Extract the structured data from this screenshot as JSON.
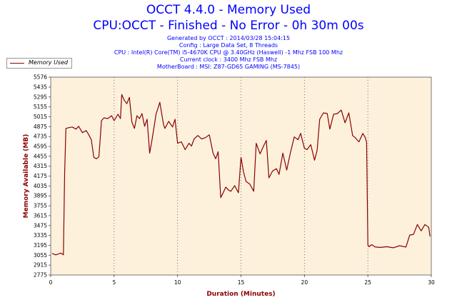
{
  "header": {
    "title": "OCCT 4.4.0 - Memory Used",
    "subtitle": "CPU:OCCT - Finished - No Error - 0h 30m 00s",
    "info_lines": [
      "Generated by OCCT : 2014/03/28 15:04:15",
      "Config : Large Data Set, 8 Threads",
      "CPU : Intel(R) Core(TM) i5-4670K CPU @ 3.40GHz (Haswell) -1 Mhz FSB 100 Mhz",
      "Current clock : 3400 Mhz FSB  Mhz",
      "MotherBoard : MSI: Z87-GD65 GAMING (MS-7845)"
    ]
  },
  "colors": {
    "line": "#8b0000",
    "plot_bg": "#fdf1dc",
    "axis_label": "#8b0000",
    "title": "#0000ff",
    "grid": "#555555"
  },
  "chart_data": {
    "type": "line",
    "title": "OCCT 4.4.0 - Memory Used",
    "xlabel": "Duration (Minutes)",
    "ylabel": "Memory Available (MB)",
    "xlim": [
      0,
      30
    ],
    "ylim": [
      2775,
      5576
    ],
    "x_ticks": [
      0,
      5,
      10,
      15,
      20,
      25,
      30
    ],
    "y_ticks": [
      2775,
      2915,
      3055,
      3195,
      3335,
      3475,
      3615,
      3755,
      3895,
      4035,
      4175,
      4315,
      4455,
      4595,
      4735,
      4875,
      5015,
      5155,
      5295,
      5435,
      5576
    ],
    "grid": "vertical-dotted",
    "legend": "top-left",
    "series": [
      {
        "name": "Memory Used",
        "x": [
          0.1,
          0.4,
          0.8,
          1.0,
          1.1,
          1.2,
          1.4,
          1.7,
          2.0,
          2.2,
          2.5,
          2.8,
          3.0,
          3.2,
          3.4,
          3.6,
          3.8,
          3.9,
          4.0,
          4.2,
          4.5,
          4.8,
          5.0,
          5.3,
          5.5,
          5.6,
          5.8,
          6.0,
          6.2,
          6.4,
          6.6,
          6.8,
          7.0,
          7.2,
          7.4,
          7.6,
          7.8,
          8.0,
          8.3,
          8.6,
          8.9,
          9.0,
          9.3,
          9.6,
          9.8,
          10.0,
          10.3,
          10.6,
          10.9,
          11.1,
          11.3,
          11.6,
          11.9,
          12.2,
          12.5,
          12.8,
          13.0,
          13.2,
          13.4,
          13.6,
          13.8,
          14.0,
          14.2,
          14.5,
          14.8,
          15.0,
          15.2,
          15.4,
          15.7,
          16.0,
          16.2,
          16.5,
          16.8,
          17.0,
          17.2,
          17.5,
          17.8,
          18.0,
          18.3,
          18.6,
          18.9,
          19.2,
          19.5,
          19.7,
          20.0,
          20.2,
          20.5,
          20.8,
          21.0,
          21.2,
          21.5,
          21.8,
          22.0,
          22.3,
          22.6,
          22.9,
          23.2,
          23.5,
          23.8,
          24.0,
          24.3,
          24.6,
          24.8,
          24.9,
          25.0,
          25.1,
          25.3,
          25.6,
          26.0,
          26.5,
          27.0,
          27.5,
          28.0,
          28.3,
          28.6,
          28.9,
          29.2,
          29.5,
          29.8,
          29.9
        ],
        "values": [
          3080,
          3060,
          3085,
          3060,
          4200,
          4850,
          4860,
          4870,
          4840,
          4880,
          4790,
          4820,
          4760,
          4690,
          4440,
          4420,
          4450,
          4700,
          4960,
          5000,
          4990,
          5030,
          4960,
          5050,
          4990,
          5330,
          5250,
          5200,
          5290,
          4940,
          4850,
          5030,
          4990,
          5060,
          4880,
          4980,
          4500,
          4700,
          5050,
          5220,
          4900,
          4850,
          4950,
          4870,
          4980,
          4640,
          4660,
          4550,
          4640,
          4600,
          4700,
          4750,
          4700,
          4720,
          4760,
          4500,
          4420,
          4520,
          3870,
          3940,
          4020,
          3980,
          3960,
          4040,
          3940,
          4440,
          4230,
          4100,
          4060,
          3960,
          4640,
          4490,
          4610,
          4680,
          4150,
          4250,
          4280,
          4200,
          4500,
          4260,
          4510,
          4730,
          4690,
          4780,
          4570,
          4550,
          4620,
          4400,
          4540,
          4980,
          5070,
          5060,
          4840,
          5050,
          5060,
          5110,
          4930,
          5070,
          4750,
          4720,
          4660,
          4780,
          4720,
          4650,
          3200,
          3175,
          3205,
          3170,
          3165,
          3175,
          3160,
          3190,
          3170,
          3340,
          3350,
          3490,
          3400,
          3490,
          3450,
          3320
        ]
      }
    ]
  }
}
